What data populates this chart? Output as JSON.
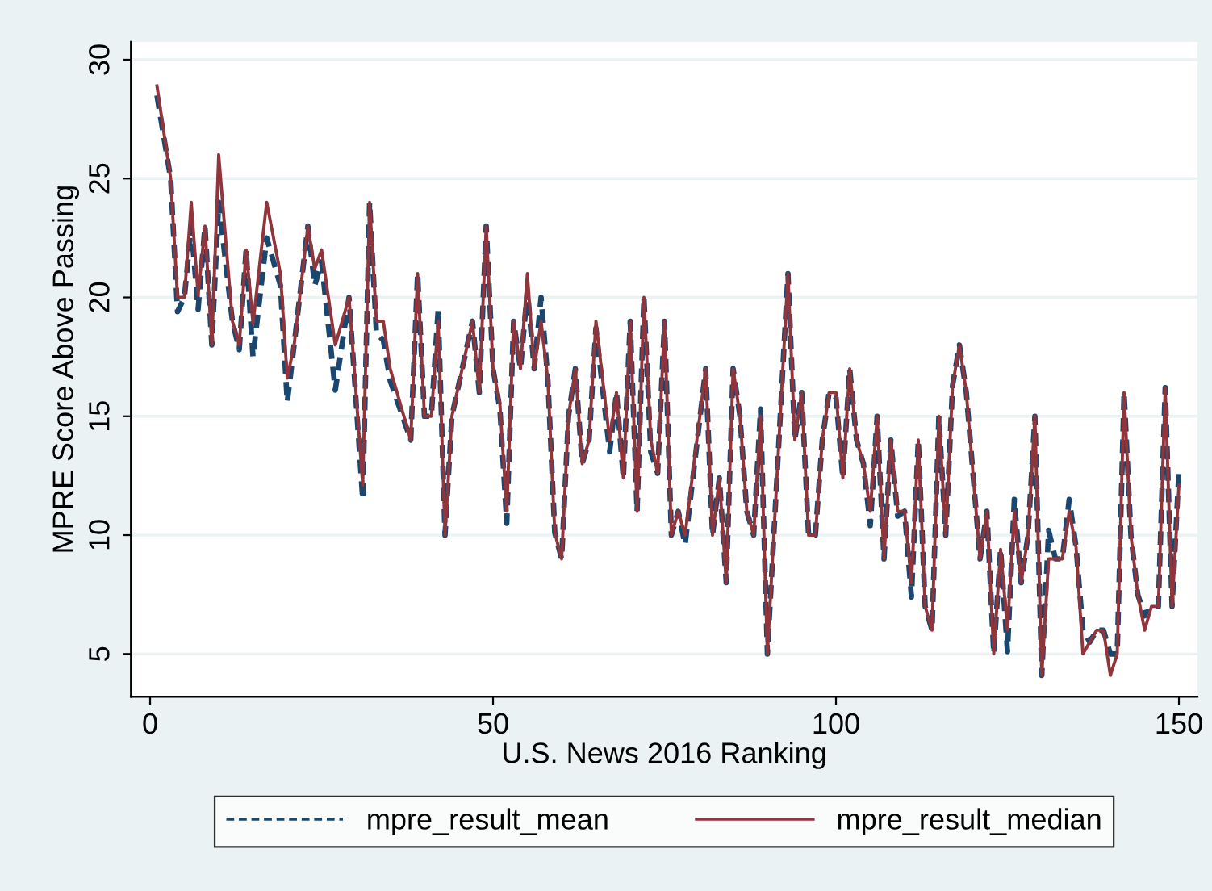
{
  "chart_data": {
    "type": "line",
    "xlabel": "U.S. News 2016 Ranking",
    "ylabel": "MPRE Score Above Passing",
    "xlim": [
      -2.8,
      152.7
    ],
    "ylim": [
      3.2,
      30.75
    ],
    "xticks": [
      0,
      50,
      100,
      150
    ],
    "yticks": [
      5,
      10,
      15,
      20,
      25,
      30
    ],
    "grid": "y",
    "legend": "bottom",
    "marker": "none",
    "series": [
      {
        "name": "mpre_result_mean",
        "color": "#1a476f",
        "line_style": "dashed",
        "x": [
          1,
          3,
          4,
          5,
          6,
          7,
          8,
          9,
          10,
          12,
          13,
          14,
          15,
          17,
          19,
          20,
          21,
          23,
          24,
          25,
          27,
          29,
          31,
          32,
          33,
          34,
          35,
          38,
          39,
          40,
          41,
          42,
          43,
          44,
          47,
          48,
          49,
          50,
          51,
          52,
          53,
          54,
          55,
          56,
          57,
          58,
          59,
          60,
          61,
          62,
          63,
          64,
          65,
          67,
          68,
          69,
          70,
          71,
          72,
          73,
          74,
          75,
          76,
          77,
          78,
          81,
          82,
          83,
          84,
          85,
          86,
          87,
          88,
          89,
          90,
          93,
          94,
          95,
          96,
          97,
          98,
          99,
          100,
          101,
          102,
          103,
          104,
          105,
          106,
          107,
          108,
          109,
          110,
          111,
          112,
          113,
          114,
          115,
          116,
          117,
          118,
          119,
          121,
          122,
          123,
          124,
          125,
          126,
          127,
          128,
          129,
          130,
          131,
          132,
          133,
          134,
          135,
          136,
          137,
          138,
          139,
          140,
          141,
          142,
          143,
          144,
          145,
          146,
          147,
          148,
          149,
          150
        ],
        "values": [
          28.5,
          25,
          19.4,
          20,
          23,
          19.5,
          23,
          18,
          24,
          19,
          17.8,
          22,
          17.5,
          22.5,
          20.5,
          15.6,
          18,
          23,
          20.5,
          21.5,
          16.1,
          20,
          11.5,
          24,
          18.5,
          18.2,
          16.5,
          14,
          21,
          15,
          15,
          19.5,
          10,
          15,
          19,
          16,
          23,
          17,
          15.3,
          10.5,
          19,
          17,
          20.3,
          17,
          20,
          16.5,
          10.1,
          9,
          15,
          17,
          13,
          14,
          18.7,
          13.5,
          16,
          12.4,
          19,
          11,
          20,
          13.5,
          12.6,
          19,
          10,
          11,
          9.6,
          17,
          10,
          12.4,
          8,
          17,
          15,
          11,
          10,
          15.3,
          5,
          21,
          14,
          16,
          10,
          10,
          14,
          16,
          15.8,
          12.4,
          17,
          14,
          13,
          10.4,
          15,
          9,
          14,
          10.8,
          11,
          7.4,
          14,
          7,
          6,
          15,
          10,
          16.3,
          18,
          16,
          9,
          11,
          5,
          9.4,
          5.1,
          11.5,
          8,
          10,
          15,
          4.1,
          10.2,
          9,
          9,
          11.5,
          9.5,
          6,
          5.5,
          6,
          6,
          5,
          5,
          16,
          10,
          7.5,
          6.6,
          7,
          7,
          16.2,
          7,
          12.7
        ]
      },
      {
        "name": "mpre_result_median",
        "color": "#90353b",
        "line_style": "solid",
        "x": [
          1,
          3,
          4,
          5,
          6,
          7,
          8,
          9,
          10,
          12,
          13,
          14,
          15,
          17,
          19,
          20,
          21,
          23,
          24,
          25,
          27,
          29,
          31,
          32,
          33,
          34,
          35,
          38,
          39,
          40,
          41,
          42,
          43,
          44,
          47,
          48,
          49,
          50,
          51,
          52,
          53,
          54,
          55,
          56,
          57,
          58,
          59,
          60,
          61,
          62,
          63,
          64,
          65,
          67,
          68,
          69,
          70,
          71,
          72,
          73,
          74,
          75,
          76,
          77,
          78,
          81,
          82,
          83,
          84,
          85,
          86,
          87,
          88,
          89,
          90,
          93,
          94,
          95,
          96,
          97,
          98,
          99,
          100,
          101,
          102,
          103,
          104,
          105,
          106,
          107,
          108,
          109,
          110,
          111,
          112,
          113,
          114,
          115,
          116,
          117,
          118,
          119,
          121,
          122,
          123,
          124,
          125,
          126,
          127,
          128,
          129,
          130,
          131,
          132,
          133,
          134,
          135,
          136,
          137,
          138,
          139,
          140,
          141,
          142,
          143,
          144,
          145,
          146,
          147,
          148,
          149,
          150
        ],
        "values": [
          28.9,
          25,
          20,
          20,
          24,
          20.1,
          23,
          18,
          26,
          19,
          18,
          22,
          18.9,
          24,
          21,
          16.6,
          18,
          23,
          21.2,
          22,
          18,
          20,
          12.1,
          24,
          19,
          19,
          17,
          14,
          21,
          15,
          15,
          19,
          10,
          15,
          19,
          16,
          23,
          17,
          15.5,
          11,
          19,
          17,
          21,
          17,
          19,
          16.5,
          10.1,
          9,
          15,
          17,
          13,
          14,
          19,
          14,
          16,
          12.4,
          19,
          11,
          20,
          14,
          12.6,
          19,
          10,
          11,
          10,
          17,
          10,
          12.4,
          8,
          17,
          15,
          11,
          10,
          15,
          5,
          21,
          14,
          16,
          10,
          10,
          14,
          16,
          16,
          12.4,
          17,
          14,
          13,
          11,
          15,
          9,
          14,
          11,
          11,
          8,
          14,
          7,
          6,
          15,
          10,
          16.3,
          18,
          16,
          9,
          11,
          5,
          9.4,
          6,
          11,
          8,
          10,
          15,
          4.1,
          9,
          9,
          9,
          11,
          9.5,
          5,
          5.5,
          6,
          6,
          4.1,
          5,
          16,
          10,
          7.5,
          6,
          7,
          7,
          16.2,
          7,
          12.1
        ]
      }
    ]
  }
}
